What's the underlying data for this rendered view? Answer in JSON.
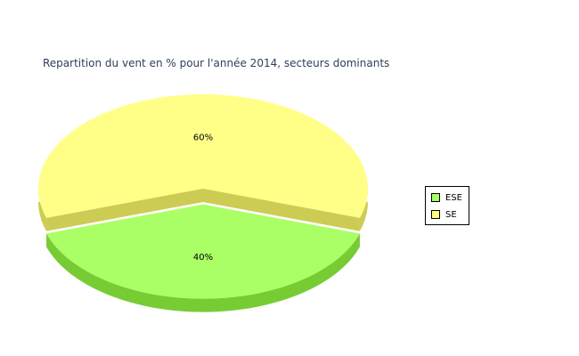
{
  "chart_data": {
    "type": "pie",
    "title": "Repartition du vent en % pour l'année 2014, secteurs dominants",
    "slices": [
      {
        "name": "ESE",
        "value": 40,
        "label": "40%",
        "color": "#aaff66",
        "side_color": "#77cc33"
      },
      {
        "name": "SE",
        "value": 60,
        "label": "60%",
        "color": "#ffff88",
        "side_color": "#cccc55"
      }
    ],
    "legend": {
      "placement": "right",
      "entries": [
        "ESE",
        "SE"
      ]
    },
    "exploded": "ESE",
    "style": "3d"
  }
}
